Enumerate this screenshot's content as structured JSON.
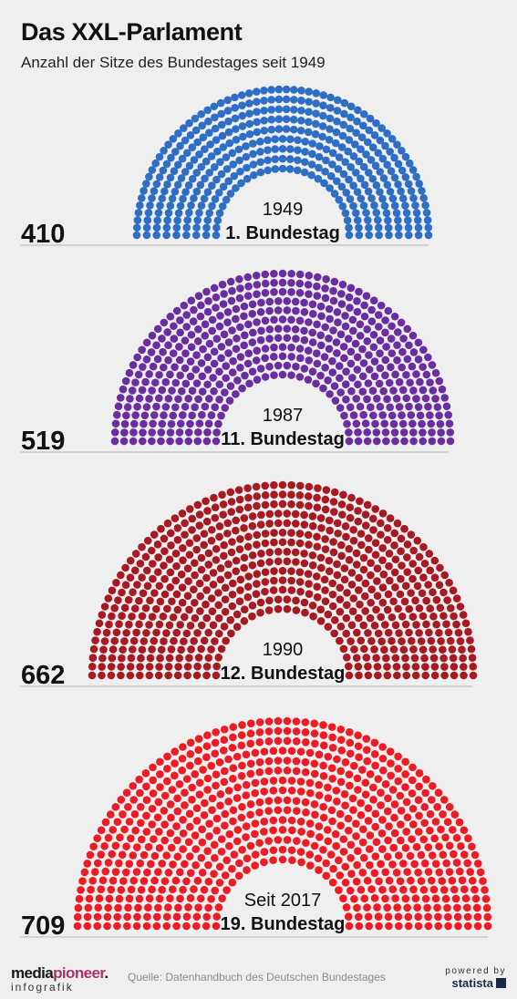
{
  "title": "Das XXL-Parlament",
  "subtitle": "Anzahl der Sitze des Bundestages seit 1949",
  "chart_data": [
    {
      "type": "parliament",
      "year_label": "1949",
      "bundestag_label": "1. Bundestag",
      "seats": 410,
      "seats_label": "410",
      "color": "#2e6fc5"
    },
    {
      "type": "parliament",
      "year_label": "1987",
      "bundestag_label": "11. Bundestag",
      "seats": 519,
      "seats_label": "519",
      "color": "#6a2ea0"
    },
    {
      "type": "parliament",
      "year_label": "1990",
      "bundestag_label": "12. Bundestag",
      "seats": 662,
      "seats_label": "662",
      "color": "#a81a22"
    },
    {
      "type": "parliament",
      "year_label": "Seit 2017",
      "bundestag_label": "19. Bundestag",
      "seats": 709,
      "seats_label": "709",
      "color": "#ee1b24"
    }
  ],
  "footer": {
    "logo_main_a": "media",
    "logo_main_b": "pioneer",
    "logo_main_c": ".",
    "logo_sub": "infografik",
    "source": "Quelle: Datenhandbuch des Deutschen Bundestages",
    "powered_top": "powered by",
    "powered_brand": "statista"
  }
}
